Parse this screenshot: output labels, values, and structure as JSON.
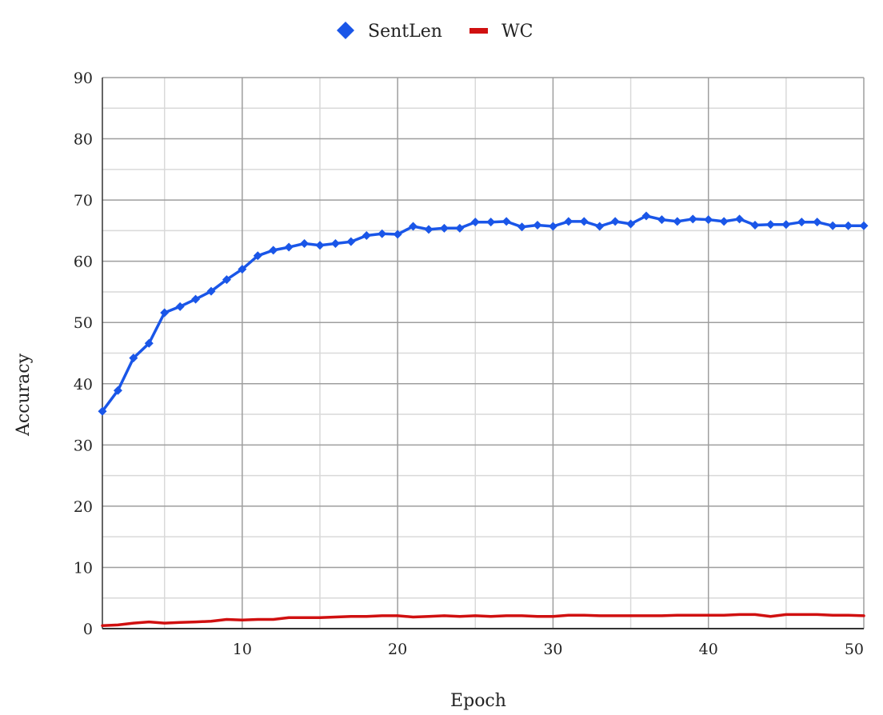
{
  "chart_data": {
    "type": "line",
    "title": "",
    "xlabel": "Epoch",
    "ylabel": "Accuracy",
    "xlim": [
      1,
      50
    ],
    "ylim": [
      0,
      90
    ],
    "x_ticks": [
      10,
      20,
      30,
      40,
      50
    ],
    "y_ticks": [
      0,
      10,
      20,
      30,
      40,
      50,
      60,
      70,
      80,
      90
    ],
    "grid": true,
    "legend_position": "top-center",
    "x": [
      1,
      2,
      3,
      4,
      5,
      6,
      7,
      8,
      9,
      10,
      11,
      12,
      13,
      14,
      15,
      16,
      17,
      18,
      19,
      20,
      21,
      22,
      23,
      24,
      25,
      26,
      27,
      28,
      29,
      30,
      31,
      32,
      33,
      34,
      35,
      36,
      37,
      38,
      39,
      40,
      41,
      42,
      43,
      44,
      45,
      46,
      47,
      48,
      49,
      50
    ],
    "series": [
      {
        "name": "SentLen",
        "color": "#1a56e8",
        "marker": "diamond",
        "values": [
          35.5,
          38.9,
          44.2,
          46.6,
          51.6,
          52.6,
          53.8,
          55.1,
          57.0,
          58.7,
          60.9,
          61.8,
          62.3,
          62.9,
          62.6,
          62.9,
          63.2,
          64.2,
          64.5,
          64.4,
          65.7,
          65.2,
          65.4,
          65.4,
          66.4,
          66.4,
          66.5,
          65.6,
          65.9,
          65.7,
          66.5,
          66.5,
          65.7,
          66.5,
          66.1,
          67.4,
          66.8,
          66.5,
          66.9,
          66.8,
          66.5,
          66.9,
          65.9,
          66.0,
          66.0,
          66.4,
          66.4,
          65.8,
          65.8,
          65.8
        ]
      },
      {
        "name": "WC",
        "color": "#d01010",
        "marker": "none",
        "values": [
          0.5,
          0.6,
          0.9,
          1.1,
          0.9,
          1.0,
          1.1,
          1.2,
          1.5,
          1.4,
          1.5,
          1.5,
          1.8,
          1.8,
          1.8,
          1.9,
          2.0,
          2.0,
          2.1,
          2.1,
          1.9,
          2.0,
          2.1,
          2.0,
          2.1,
          2.0,
          2.1,
          2.1,
          2.0,
          2.0,
          2.2,
          2.2,
          2.1,
          2.1,
          2.1,
          2.1,
          2.1,
          2.2,
          2.2,
          2.2,
          2.2,
          2.3,
          2.3,
          2.0,
          2.3,
          2.3,
          2.3,
          2.2,
          2.2,
          2.1
        ]
      }
    ]
  }
}
